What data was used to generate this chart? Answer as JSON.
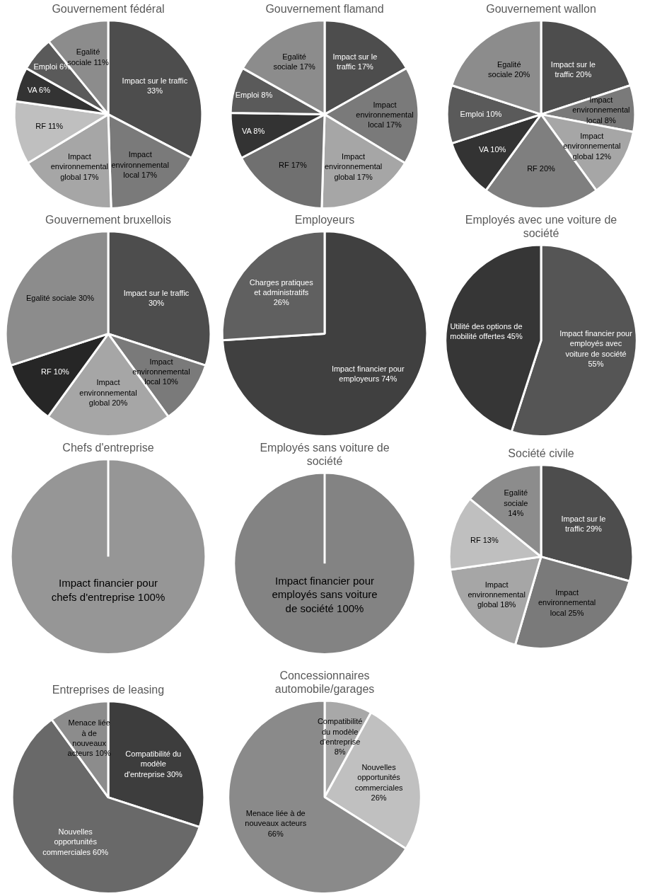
{
  "chart_data": [
    {
      "type": "pie",
      "title": "Gouvernement fédéral",
      "categories": [
        "Impact sur le traffic",
        "Impact environnemental local",
        "Impact environnemental global",
        "RF",
        "VA",
        "Emploi",
        "Egalité sociale"
      ],
      "values": [
        33,
        17,
        17,
        11,
        6,
        6,
        11
      ],
      "value_labels": [
        "33%",
        "17%",
        "17%",
        "11%",
        "6%",
        "6%",
        "11%"
      ],
      "colors": [
        "#4d4d4d",
        "#7a7a7a",
        "#a6a6a6",
        "#bfbfbf",
        "#333333",
        "#5a5a5a",
        "#8c8c8c"
      ]
    },
    {
      "type": "pie",
      "title": "Gouvernement flamand",
      "categories": [
        "Impact sur le traffic",
        "Impact environnemental local",
        "Impact environnemental global",
        "RF",
        "VA",
        "Emploi",
        "Egalité sociale"
      ],
      "values": [
        17,
        17,
        17,
        17,
        8,
        8,
        17
      ],
      "value_labels": [
        "17%",
        "17%",
        "17%",
        "17%",
        "8%",
        "8%",
        "17%"
      ],
      "colors": [
        "#4d4d4d",
        "#7a7a7a",
        "#a6a6a6",
        "#707070",
        "#333333",
        "#5a5a5a",
        "#8c8c8c"
      ]
    },
    {
      "type": "pie",
      "title": "Gouvernement wallon",
      "categories": [
        "Impact sur le traffic",
        "Impact environnemental local",
        "Impact environnemental global",
        "RF",
        "VA",
        "Emploi",
        "Egalité sociale"
      ],
      "values": [
        20,
        8,
        12,
        20,
        10,
        10,
        20
      ],
      "value_labels": [
        "20%",
        "8%",
        "12%",
        "20%",
        "10%",
        "10%",
        "20%"
      ],
      "colors": [
        "#4d4d4d",
        "#7a7a7a",
        "#a6a6a6",
        "#7f7f7f",
        "#333333",
        "#5a5a5a",
        "#8c8c8c"
      ]
    },
    {
      "type": "pie",
      "title": "Gouvernement bruxellois",
      "categories": [
        "Impact sur le traffic",
        "Impact environnemental local",
        "Impact environnemental global",
        "RF",
        "Egalité sociale"
      ],
      "values": [
        30,
        10,
        20,
        10,
        30
      ],
      "value_labels": [
        "30%",
        "10%",
        "20%",
        "10%",
        "30%"
      ],
      "colors": [
        "#4d4d4d",
        "#7a7a7a",
        "#a6a6a6",
        "#262626",
        "#8c8c8c"
      ]
    },
    {
      "type": "pie",
      "title": "Employeurs",
      "categories": [
        "Impact financier pour employeurs",
        "Charges pratiques et administratifs"
      ],
      "values": [
        74,
        26
      ],
      "value_labels": [
        "74%",
        "26%"
      ],
      "colors": [
        "#404040",
        "#606060"
      ]
    },
    {
      "type": "pie",
      "title": "Employés avec une voiture de société",
      "categories": [
        "Impact financier pour employés avec voiture de société",
        "Utilité des options de mobilité offertes"
      ],
      "values": [
        55,
        45
      ],
      "value_labels": [
        "55%",
        "45%"
      ],
      "colors": [
        "#555555",
        "#363636"
      ]
    },
    {
      "type": "pie",
      "title": "Chefs d'entreprise",
      "categories": [
        "Impact financier pour chefs d'entreprise"
      ],
      "values": [
        100
      ],
      "value_labels": [
        "100%"
      ],
      "colors": [
        "#969696"
      ]
    },
    {
      "type": "pie",
      "title": "Employés sans voiture de société",
      "categories": [
        "Impact financier pour employés sans voiture de société"
      ],
      "values": [
        100
      ],
      "value_labels": [
        "100%"
      ],
      "colors": [
        "#838383"
      ]
    },
    {
      "type": "pie",
      "title": "Société civile",
      "categories": [
        "Impact sur le traffic",
        "Impact environnemental local",
        "Impact environnemental global",
        "RF",
        "Egalité sociale"
      ],
      "values": [
        29,
        25,
        18,
        13,
        14
      ],
      "value_labels": [
        "29%",
        "25%",
        "18%",
        "13%",
        "14%"
      ],
      "colors": [
        "#4d4d4d",
        "#7a7a7a",
        "#a6a6a6",
        "#bfbfbf",
        "#8c8c8c"
      ]
    },
    {
      "type": "pie",
      "title": "Entreprises de leasing",
      "categories": [
        "Compatibilité du modèle d'entreprise",
        "Nouvelles opportunités commerciales",
        "Menace liée à de nouveaux acteurs"
      ],
      "values": [
        30,
        60,
        10
      ],
      "value_labels": [
        "30%",
        "60%",
        "10%"
      ],
      "colors": [
        "#3d3d3d",
        "#696969",
        "#8c8c8c"
      ]
    },
    {
      "type": "pie",
      "title": "Concessionnaires automobile/garages",
      "categories": [
        "Compatibilité du modèle d'entreprise",
        "Nouvelles opportunités commerciales",
        "Menace liée à de nouveaux acteurs"
      ],
      "values": [
        8,
        26,
        66
      ],
      "value_labels": [
        "8%",
        "26%",
        "66%"
      ],
      "colors": [
        "#a8a8a8",
        "#c0c0c0",
        "#8a8a8a"
      ]
    }
  ]
}
